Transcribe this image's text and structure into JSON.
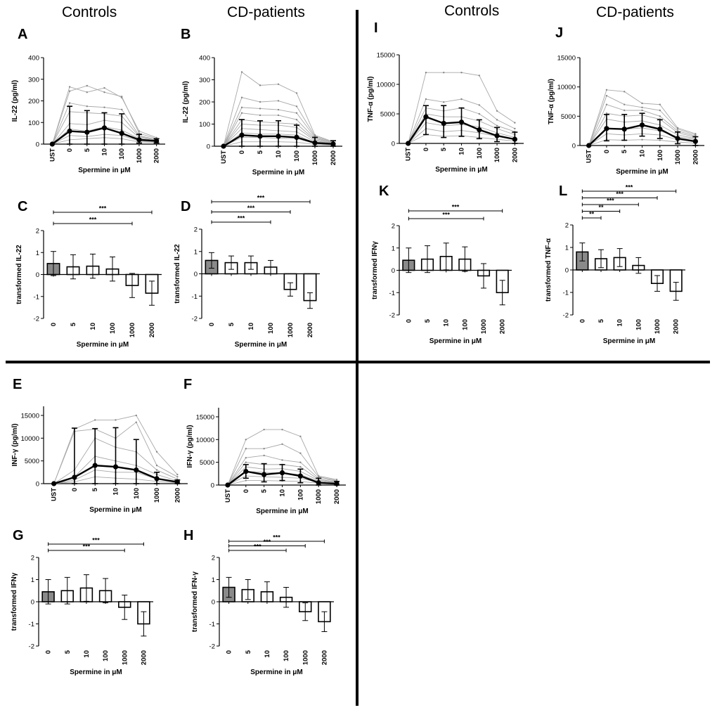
{
  "headers": {
    "controls_left": "Controls",
    "cd_left": "CD-patients",
    "controls_right": "Controls",
    "cd_right": "CD-patients"
  },
  "colors": {
    "filled_bar": "#8a8a8a",
    "thin_line": "#a8a8a8",
    "mean_line": "#000000"
  },
  "chart_data": [
    {
      "panel": "A",
      "type": "line",
      "ylabel": "IL-22 (pg/ml)",
      "xlabel": "Spermine in μM",
      "categories": [
        "UST",
        "0",
        "5",
        "10",
        "100",
        "1000",
        "2000"
      ],
      "yticks": [
        0,
        100,
        200,
        300,
        400
      ],
      "ylim": [
        0,
        400
      ],
      "mean": [
        0,
        60,
        55,
        75,
        50,
        20,
        15
      ],
      "error_upper": [
        0,
        175,
        155,
        145,
        140,
        45,
        25
      ],
      "error_lower": [
        0,
        0,
        0,
        0,
        0,
        5,
        5
      ],
      "individual": [
        [
          0,
          265,
          240,
          260,
          215,
          60,
          30
        ],
        [
          0,
          245,
          270,
          240,
          220,
          50,
          25
        ],
        [
          0,
          190,
          175,
          170,
          160,
          40,
          20
        ],
        [
          0,
          150,
          145,
          140,
          130,
          35,
          18
        ],
        [
          0,
          95,
          90,
          110,
          100,
          30,
          15
        ],
        [
          0,
          70,
          60,
          80,
          65,
          25,
          12
        ],
        [
          0,
          40,
          35,
          45,
          40,
          15,
          10
        ],
        [
          0,
          20,
          25,
          30,
          25,
          10,
          8
        ]
      ]
    },
    {
      "panel": "B",
      "type": "line",
      "ylabel": "IL-22 (pg/ml)",
      "xlabel": "Spermine in μM",
      "categories": [
        "UST",
        "0",
        "5",
        "10",
        "100",
        "1000",
        "2000"
      ],
      "yticks": [
        0,
        100,
        200,
        300,
        400
      ],
      "ylim": [
        0,
        400
      ],
      "mean": [
        0,
        50,
        45,
        45,
        40,
        15,
        10
      ],
      "error_upper": [
        0,
        120,
        115,
        115,
        95,
        40,
        25
      ],
      "error_lower": [
        0,
        0,
        0,
        0,
        0,
        0,
        0
      ],
      "individual": [
        [
          0,
          335,
          275,
          280,
          240,
          50,
          20
        ],
        [
          0,
          220,
          200,
          205,
          180,
          45,
          18
        ],
        [
          0,
          175,
          170,
          165,
          150,
          40,
          15
        ],
        [
          0,
          150,
          140,
          140,
          120,
          35,
          15
        ],
        [
          0,
          120,
          110,
          105,
          100,
          30,
          12
        ],
        [
          0,
          100,
          95,
          95,
          85,
          25,
          10
        ],
        [
          0,
          80,
          75,
          70,
          65,
          20,
          10
        ],
        [
          0,
          60,
          55,
          55,
          50,
          15,
          8
        ],
        [
          0,
          40,
          40,
          35,
          35,
          12,
          6
        ],
        [
          0,
          20,
          20,
          20,
          18,
          8,
          5
        ]
      ]
    },
    {
      "panel": "C",
      "type": "bar",
      "ylabel": "transformed IL-22",
      "xlabel": "Spermine in μM",
      "categories": [
        "0",
        "5",
        "10",
        "100",
        "1000",
        "2000"
      ],
      "values": [
        0.5,
        0.35,
        0.38,
        0.25,
        -0.5,
        -0.85
      ],
      "error": [
        0.55,
        0.55,
        0.55,
        0.55,
        0.55,
        0.55
      ],
      "ylim": [
        -2,
        2
      ],
      "yticks": [
        -2,
        -1,
        0,
        1,
        2
      ],
      "significance": [
        {
          "from": "0",
          "to": "1000",
          "label": "***"
        },
        {
          "from": "0",
          "to": "2000",
          "label": "***"
        }
      ]
    },
    {
      "panel": "D",
      "type": "bar",
      "ylabel": "transformed IL-22",
      "xlabel": "Spermine in μM",
      "categories": [
        "0",
        "5",
        "10",
        "100",
        "1000",
        "2000"
      ],
      "values": [
        0.6,
        0.5,
        0.5,
        0.3,
        -0.7,
        -1.2
      ],
      "error": [
        0.35,
        0.3,
        0.3,
        0.3,
        0.3,
        0.35
      ],
      "ylim": [
        -2,
        2
      ],
      "yticks": [
        -2,
        -1,
        0,
        1,
        2
      ],
      "significance": [
        {
          "from": "0",
          "to": "100",
          "label": "***"
        },
        {
          "from": "0",
          "to": "1000",
          "label": "***"
        },
        {
          "from": "0",
          "to": "2000",
          "label": "***"
        }
      ]
    },
    {
      "panel": "E",
      "type": "line",
      "ylabel": "INF-γ (pg/ml)",
      "xlabel": "Spermine in μM",
      "categories": [
        "UST",
        "0",
        "5",
        "10",
        "100",
        "1000",
        "2000"
      ],
      "yticks": [
        0,
        5000,
        10000,
        15000
      ],
      "ylim": [
        0,
        17000
      ],
      "mean": [
        0,
        1400,
        4000,
        3700,
        3000,
        1100,
        350
      ],
      "error_upper": [
        0,
        12200,
        12100,
        12300,
        9700,
        2500,
        800
      ],
      "error_lower": [
        0,
        0,
        0,
        0,
        0,
        0,
        0
      ],
      "individual": [
        [
          0,
          12000,
          14000,
          14000,
          15000,
          7000,
          2000
        ],
        [
          0,
          11500,
          12000,
          10000,
          13500,
          4000,
          1500
        ],
        [
          0,
          3000,
          10000,
          8000,
          7000,
          3000,
          1000
        ],
        [
          0,
          1500,
          6000,
          5000,
          4000,
          2000,
          600
        ],
        [
          0,
          800,
          3000,
          2500,
          2500,
          1000,
          400
        ],
        [
          0,
          400,
          1500,
          1200,
          1000,
          500,
          200
        ]
      ]
    },
    {
      "panel": "F",
      "type": "line",
      "ylabel": "IFN-γ (pg/ml)",
      "xlabel": "Spermine in μM",
      "categories": [
        "UST",
        "0",
        "5",
        "10",
        "100",
        "1000",
        "2000"
      ],
      "yticks": [
        0,
        5000,
        10000,
        15000
      ],
      "ylim": [
        0,
        17000
      ],
      "mean": [
        0,
        3000,
        2300,
        2700,
        2000,
        500,
        300
      ],
      "error_upper": [
        0,
        4500,
        4700,
        4500,
        3500,
        1500,
        800
      ],
      "error_lower": [
        0,
        1500,
        700,
        1000,
        500,
        0,
        0
      ],
      "individual": [
        [
          0,
          10000,
          12200,
          12200,
          10700,
          2000,
          1200
        ],
        [
          0,
          8000,
          8000,
          9000,
          7000,
          1800,
          1000
        ],
        [
          0,
          6000,
          6500,
          5500,
          5000,
          1500,
          900
        ],
        [
          0,
          5000,
          4500,
          4500,
          4000,
          1200,
          700
        ],
        [
          0,
          4000,
          3500,
          3600,
          3000,
          1000,
          600
        ],
        [
          0,
          3000,
          2800,
          2600,
          2300,
          800,
          500
        ],
        [
          0,
          2000,
          1800,
          1700,
          1500,
          600,
          400
        ],
        [
          0,
          1000,
          1000,
          900,
          800,
          400,
          300
        ]
      ]
    },
    {
      "panel": "G",
      "type": "bar",
      "ylabel": "transformed IFNγ",
      "xlabel": "Spermine in μM",
      "categories": [
        "0",
        "5",
        "10",
        "100",
        "1000",
        "2000"
      ],
      "values": [
        0.45,
        0.5,
        0.62,
        0.5,
        -0.25,
        -1.0
      ],
      "error": [
        0.55,
        0.6,
        0.6,
        0.55,
        0.55,
        0.55
      ],
      "ylim": [
        -2,
        2
      ],
      "yticks": [
        -2,
        -1,
        0,
        1,
        2
      ],
      "significance": [
        {
          "from": "0",
          "to": "1000",
          "label": "***"
        },
        {
          "from": "0",
          "to": "2000",
          "label": "***"
        }
      ]
    },
    {
      "panel": "H",
      "type": "bar",
      "ylabel": "transformed IFN-γ",
      "xlabel": "Spermine in μM",
      "categories": [
        "0",
        "5",
        "10",
        "100",
        "1000",
        "2000"
      ],
      "values": [
        0.65,
        0.55,
        0.45,
        0.2,
        -0.45,
        -0.9
      ],
      "error": [
        0.45,
        0.45,
        0.45,
        0.45,
        0.4,
        0.45
      ],
      "ylim": [
        -2,
        2
      ],
      "yticks": [
        -2,
        -1,
        0,
        1,
        2
      ],
      "significance": [
        {
          "from": "0",
          "to": "100",
          "label": "***"
        },
        {
          "from": "0",
          "to": "1000",
          "label": "***"
        },
        {
          "from": "0",
          "to": "2000",
          "label": "***"
        }
      ]
    },
    {
      "panel": "I",
      "type": "line",
      "ylabel": "TNF-α (pg/ml)",
      "xlabel": "Spermine in μM",
      "categories": [
        "UST",
        "0",
        "5",
        "10",
        "100",
        "1000",
        "2000"
      ],
      "yticks": [
        0,
        5000,
        10000,
        15000
      ],
      "ylim": [
        0,
        15000
      ],
      "mean": [
        0,
        4500,
        3400,
        3600,
        2300,
        1300,
        700
      ],
      "error_upper": [
        0,
        6400,
        6400,
        6000,
        4000,
        2700,
        1900
      ],
      "error_lower": [
        0,
        1500,
        1000,
        1200,
        800,
        300,
        0
      ],
      "individual": [
        [
          0,
          12000,
          12000,
          12000,
          11500,
          5500,
          3500
        ],
        [
          0,
          7500,
          7000,
          7500,
          6500,
          4000,
          2500
        ],
        [
          0,
          6000,
          5500,
          6000,
          5000,
          3000,
          2000
        ],
        [
          0,
          5000,
          4500,
          4500,
          3800,
          2500,
          1500
        ],
        [
          0,
          3500,
          3000,
          3200,
          2800,
          1800,
          1000
        ],
        [
          0,
          2500,
          2000,
          2200,
          1800,
          1200,
          700
        ],
        [
          0,
          1500,
          1200,
          1300,
          1000,
          700,
          400
        ]
      ]
    },
    {
      "panel": "J",
      "type": "line",
      "ylabel": "TNF-α (pg/ml)",
      "xlabel": "Spermine in μM",
      "categories": [
        "UST",
        "0",
        "5",
        "10",
        "100",
        "1000",
        "2000"
      ],
      "yticks": [
        0,
        5000,
        10000,
        15000
      ],
      "ylim": [
        0,
        15000
      ],
      "mean": [
        0,
        2900,
        2800,
        3500,
        2800,
        1200,
        700
      ],
      "error_upper": [
        0,
        5300,
        5300,
        5500,
        4400,
        2300,
        1500
      ],
      "error_lower": [
        0,
        800,
        900,
        1600,
        1200,
        300,
        0
      ],
      "individual": [
        [
          0,
          9500,
          9200,
          7200,
          7000,
          3000,
          2000
        ],
        [
          0,
          8500,
          7000,
          6500,
          6000,
          2800,
          1800
        ],
        [
          0,
          7000,
          6000,
          6000,
          5000,
          2500,
          1600
        ],
        [
          0,
          5500,
          5000,
          5200,
          4500,
          2200,
          1400
        ],
        [
          0,
          4500,
          4000,
          4200,
          3500,
          1800,
          1200
        ],
        [
          0,
          3000,
          2800,
          3000,
          2500,
          1500,
          1000
        ],
        [
          0,
          2000,
          1800,
          2000,
          1800,
          1000,
          700
        ],
        [
          0,
          1000,
          900,
          1000,
          900,
          600,
          400
        ]
      ]
    },
    {
      "panel": "K",
      "type": "bar",
      "ylabel": "transformed IFNγ",
      "xlabel": "Spermine in μM",
      "categories": [
        "0",
        "5",
        "10",
        "100",
        "1000",
        "2000"
      ],
      "values": [
        0.45,
        0.5,
        0.62,
        0.5,
        -0.25,
        -1.0
      ],
      "error": [
        0.55,
        0.6,
        0.6,
        0.55,
        0.55,
        0.55
      ],
      "ylim": [
        -2,
        2
      ],
      "yticks": [
        -2,
        -1,
        0,
        1,
        2
      ],
      "significance": [
        {
          "from": "0",
          "to": "1000",
          "label": "***"
        },
        {
          "from": "0",
          "to": "2000",
          "label": "***"
        }
      ]
    },
    {
      "panel": "L",
      "type": "bar",
      "ylabel": "transformed TNF-α",
      "xlabel": "Spermine in μM",
      "categories": [
        "0",
        "5",
        "10",
        "100",
        "1000",
        "2000"
      ],
      "values": [
        0.8,
        0.5,
        0.55,
        0.2,
        -0.6,
        -0.95
      ],
      "error": [
        0.4,
        0.4,
        0.4,
        0.35,
        0.35,
        0.4
      ],
      "ylim": [
        -2,
        2
      ],
      "yticks": [
        -2,
        -1,
        0,
        1,
        2
      ],
      "significance": [
        {
          "from": "0",
          "to": "5",
          "label": "**"
        },
        {
          "from": "0",
          "to": "10",
          "label": "**"
        },
        {
          "from": "0",
          "to": "100",
          "label": "***"
        },
        {
          "from": "0",
          "to": "1000",
          "label": "***"
        },
        {
          "from": "0",
          "to": "2000",
          "label": "***"
        }
      ]
    }
  ]
}
